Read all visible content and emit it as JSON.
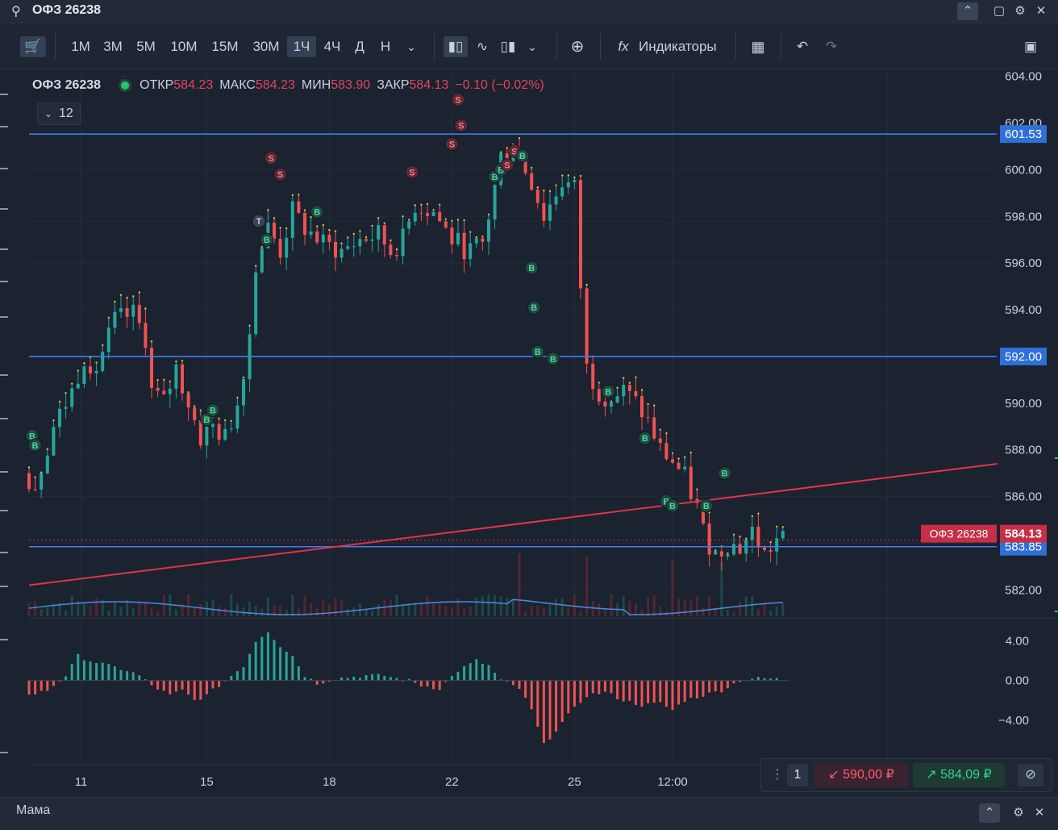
{
  "window": {
    "search_icon": "search-icon",
    "title": "ОФЗ 26238"
  },
  "toolbar": {
    "timeframes": [
      "1M",
      "3M",
      "5M",
      "10M",
      "15M",
      "30M",
      "1Ч",
      "4Ч",
      "Д",
      "Н"
    ],
    "active_timeframe": "1Ч",
    "indicators_label": "Индикаторы"
  },
  "legend": {
    "symbol": "ОФЗ 26238",
    "open_label": "ОТКР",
    "open": "584.23",
    "high_label": "МАКС",
    "high": "584.23",
    "low_label": "МИН",
    "low": "583.90",
    "close_label": "ЗАКР",
    "close": "584.13",
    "change": "−0.10 (−0.02%)",
    "collapsed_count": "12"
  },
  "colors": {
    "up": "#26a69a",
    "down": "#ef5350",
    "level_line": "#3d7ff0",
    "trend_line": "#e0344a",
    "background": "#1b2230"
  },
  "chart_data": {
    "type": "candlestick",
    "y_axis": {
      "ticks": [
        "604.00",
        "602.00",
        "600.00",
        "598.00",
        "596.00",
        "594.00",
        "592.00",
        "590.00",
        "588.00",
        "586.00",
        "584.00",
        "582.00"
      ],
      "ylim": [
        580.8,
        604.3
      ]
    },
    "x_axis": {
      "tick_labels": [
        "11",
        "15",
        "18",
        "22",
        "25",
        "12:00"
      ],
      "tick_positions": [
        8.5,
        29,
        49,
        69,
        89,
        105
      ]
    },
    "bars_count": 124,
    "price_anchors": [
      [
        0,
        587.0
      ],
      [
        2,
        586.5
      ],
      [
        5,
        589.0
      ],
      [
        8,
        590.5
      ],
      [
        10,
        592.0
      ],
      [
        12,
        591.5
      ],
      [
        15,
        593.5
      ],
      [
        18,
        593.8
      ],
      [
        20,
        592.8
      ],
      [
        21,
        590.5
      ],
      [
        23,
        590.0
      ],
      [
        25,
        591.5
      ],
      [
        27,
        590.0
      ],
      [
        29,
        588.5
      ],
      [
        31,
        589.0
      ],
      [
        33,
        588.5
      ],
      [
        35,
        590.0
      ],
      [
        37,
        593.0
      ],
      [
        38,
        596.0
      ],
      [
        40,
        597.5
      ],
      [
        42,
        596.5
      ],
      [
        44,
        598.2
      ],
      [
        46,
        597.5
      ],
      [
        49,
        596.8
      ],
      [
        52,
        596.5
      ],
      [
        55,
        597.0
      ],
      [
        58,
        597.2
      ],
      [
        60,
        596.5
      ],
      [
        62,
        597.0
      ],
      [
        64,
        598.5
      ],
      [
        67,
        598.2
      ],
      [
        70,
        597.0
      ],
      [
        73,
        596.5
      ],
      [
        75,
        596.8
      ],
      [
        76,
        598.0
      ],
      [
        78,
        600.5
      ],
      [
        80,
        601.0
      ],
      [
        81,
        600.5
      ],
      [
        83,
        599.5
      ],
      [
        85,
        598.0
      ],
      [
        88,
        599.5
      ],
      [
        90,
        599.2
      ],
      [
        91,
        595.0
      ],
      [
        92,
        591.5
      ],
      [
        94,
        590.5
      ],
      [
        96,
        590.2
      ],
      [
        98,
        590.5
      ],
      [
        100,
        590.0
      ],
      [
        102,
        589.2
      ],
      [
        104,
        588.0
      ],
      [
        106,
        587.5
      ],
      [
        108,
        586.8
      ],
      [
        110,
        585.5
      ],
      [
        111,
        584.5
      ],
      [
        113,
        583.5
      ],
      [
        115,
        584.0
      ],
      [
        117,
        583.8
      ],
      [
        119,
        584.5
      ],
      [
        121,
        583.5
      ],
      [
        123,
        584.13
      ]
    ],
    "horizontal_levels": [
      601.53,
      592.0,
      583.85
    ],
    "trend_line": {
      "from": [
        0,
        582.2
      ],
      "to": [
        158,
        587.4
      ]
    },
    "last_price": {
      "label": "ОФЗ 26238",
      "value": "584.13"
    },
    "level_labels": [
      "601.53",
      "592.00",
      "583.85"
    ],
    "trade_markers": [
      {
        "x": 0.5,
        "y": 588.6,
        "side": "B"
      },
      {
        "x": 1.0,
        "y": 588.2,
        "side": "B"
      },
      {
        "x": 29.0,
        "y": 589.3,
        "side": "B"
      },
      {
        "x": 30.0,
        "y": 589.7,
        "side": "B"
      },
      {
        "x": 37.5,
        "y": 597.8,
        "side": "T"
      },
      {
        "x": 38.8,
        "y": 597.0,
        "side": "B"
      },
      {
        "x": 39.5,
        "y": 600.5,
        "side": "S"
      },
      {
        "x": 41.0,
        "y": 599.8,
        "side": "S"
      },
      {
        "x": 47.0,
        "y": 598.2,
        "side": "B"
      },
      {
        "x": 62.5,
        "y": 599.9,
        "side": "S"
      },
      {
        "x": 69.0,
        "y": 601.1,
        "side": "S"
      },
      {
        "x": 70.0,
        "y": 603.0,
        "side": "S"
      },
      {
        "x": 70.5,
        "y": 601.9,
        "side": "S"
      },
      {
        "x": 76.0,
        "y": 599.7,
        "side": "B"
      },
      {
        "x": 77.0,
        "y": 600.0,
        "side": "B"
      },
      {
        "x": 78.0,
        "y": 600.2,
        "side": "S"
      },
      {
        "x": 79.2,
        "y": 600.8,
        "side": "S"
      },
      {
        "x": 80.5,
        "y": 600.6,
        "side": "B"
      },
      {
        "x": 82.0,
        "y": 595.8,
        "side": "B"
      },
      {
        "x": 82.4,
        "y": 594.1,
        "side": "B"
      },
      {
        "x": 83.0,
        "y": 592.2,
        "side": "B"
      },
      {
        "x": 85.5,
        "y": 591.9,
        "side": "B"
      },
      {
        "x": 94.5,
        "y": 590.5,
        "side": "B"
      },
      {
        "x": 100.5,
        "y": 588.5,
        "side": "B"
      },
      {
        "x": 104.0,
        "y": 585.8,
        "side": "B"
      },
      {
        "x": 105.0,
        "y": 585.6,
        "side": "B"
      },
      {
        "x": 110.5,
        "y": 585.6,
        "side": "B"
      },
      {
        "x": 113.5,
        "y": 587.0,
        "side": "B"
      }
    ]
  },
  "macd": {
    "ticks": [
      "4.00",
      "0.00",
      "−4.00"
    ],
    "ylim": [
      -8.5,
      6.0
    ],
    "anchors": [
      [
        0,
        -1.5
      ],
      [
        3,
        -1.0
      ],
      [
        6,
        0.5
      ],
      [
        8,
        2.5
      ],
      [
        10,
        2.0
      ],
      [
        13,
        1.5
      ],
      [
        16,
        1.0
      ],
      [
        18,
        0.5
      ],
      [
        20,
        -0.5
      ],
      [
        23,
        -1.5
      ],
      [
        25,
        -1.0
      ],
      [
        27,
        -2.0
      ],
      [
        29,
        -1.5
      ],
      [
        31,
        -0.5
      ],
      [
        33,
        0.5
      ],
      [
        35,
        1.5
      ],
      [
        37,
        4.0
      ],
      [
        39,
        5.0
      ],
      [
        41,
        3.5
      ],
      [
        43,
        2.5
      ],
      [
        45,
        0.5
      ],
      [
        47,
        -0.3
      ],
      [
        50,
        0.2
      ],
      [
        55,
        0.5
      ],
      [
        58,
        0.5
      ],
      [
        60,
        0.2
      ],
      [
        62,
        0.0
      ],
      [
        64,
        -0.5
      ],
      [
        67,
        -0.8
      ],
      [
        70,
        1.0
      ],
      [
        73,
        2.0
      ],
      [
        75,
        1.5
      ],
      [
        77,
        0.0
      ],
      [
        80,
        -0.8
      ],
      [
        82,
        -3.0
      ],
      [
        84,
        -6.5
      ],
      [
        86,
        -5.0
      ],
      [
        88,
        -3.5
      ],
      [
        91,
        -1.5
      ],
      [
        94,
        -1.2
      ],
      [
        97,
        -2.0
      ],
      [
        100,
        -2.5
      ],
      [
        103,
        -2.3
      ],
      [
        105,
        -3.0
      ],
      [
        107,
        -2.0
      ],
      [
        110,
        -1.5
      ],
      [
        113,
        -1.0
      ],
      [
        116,
        0.0
      ],
      [
        118,
        0.2
      ],
      [
        121,
        0.2
      ],
      [
        123,
        0.1
      ]
    ]
  },
  "order_panel": {
    "qty": "1",
    "sell_price": "590,00 ₽",
    "buy_price": "584,09 ₽"
  },
  "bottom_panel": {
    "title": "Мама"
  }
}
